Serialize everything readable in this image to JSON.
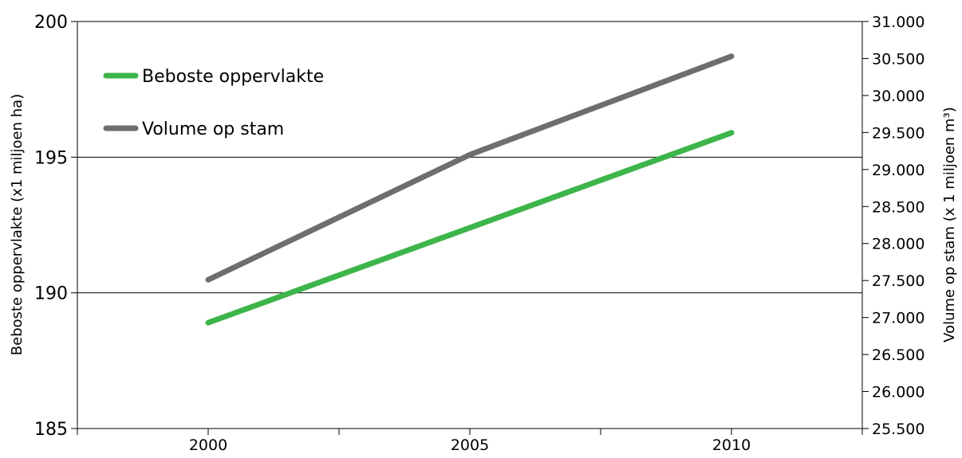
{
  "chart_data": {
    "type": "line",
    "x": [
      "2000",
      "2005",
      "2010"
    ],
    "series": [
      {
        "name": "Beboste oppervlakte",
        "axis": "left",
        "color": "#3db54a",
        "values": [
          188.9,
          192.4,
          195.9
        ]
      },
      {
        "name": "Volume op stam",
        "axis": "right",
        "color": "#6d6e70",
        "values": [
          27510,
          29200,
          30530
        ]
      }
    ],
    "ylabel": "Beboste oppervlakte (x1 miljoen ha)",
    "ylabel_right": "Volume op stam (x 1 miljoen m³)",
    "ylim": [
      185,
      200
    ],
    "ylim_right": [
      25500,
      31000
    ],
    "yticks": [
      "185",
      "190",
      "195",
      "200"
    ],
    "yticks_right": [
      "25.500",
      "26.000",
      "26.500",
      "27.000",
      "27.500",
      "28.000",
      "28.500",
      "29.000",
      "29.500",
      "30.000",
      "30.500",
      "31.000"
    ],
    "xlim": [
      1997.5,
      2012.5
    ],
    "legend_position": "top-left",
    "grid": "horizontal major lines on left axis"
  }
}
